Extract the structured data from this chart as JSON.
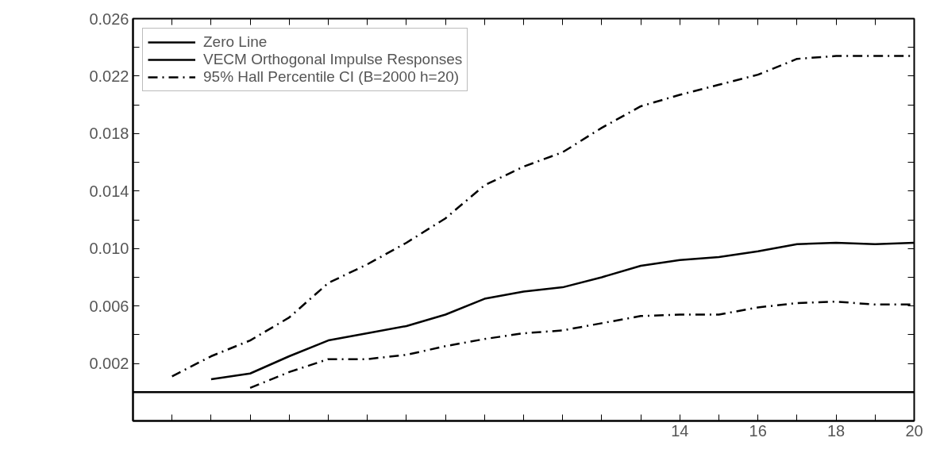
{
  "chart_data": {
    "type": "line",
    "x": [
      0,
      1,
      2,
      3,
      4,
      5,
      6,
      7,
      8,
      9,
      10,
      11,
      12,
      13,
      14,
      15,
      16,
      17,
      18,
      19,
      20
    ],
    "xlim": [
      0,
      20
    ],
    "ylim": [
      -0.002,
      0.026
    ],
    "xticks": [
      {
        "value": 0,
        "label": null
      },
      {
        "value": 1,
        "label": null
      },
      {
        "value": 2,
        "label": null
      },
      {
        "value": 3,
        "label": null
      },
      {
        "value": 4,
        "label": null
      },
      {
        "value": 5,
        "label": null
      },
      {
        "value": 6,
        "label": null
      },
      {
        "value": 7,
        "label": null
      },
      {
        "value": 8,
        "label": null
      },
      {
        "value": 9,
        "label": null
      },
      {
        "value": 10,
        "label": null
      },
      {
        "value": 11,
        "label": null
      },
      {
        "value": 12,
        "label": null
      },
      {
        "value": 13,
        "label": null
      },
      14,
      {
        "value": 15,
        "label": null
      },
      16,
      {
        "value": 17,
        "label": null
      },
      18,
      {
        "value": 19,
        "label": null
      },
      20
    ],
    "yticks": [
      {
        "value": 0.002,
        "label": "0.002"
      },
      {
        "value": 0.004,
        "label": null
      },
      {
        "value": 0.006,
        "label": "0.006"
      },
      {
        "value": 0.008,
        "label": null
      },
      {
        "value": 0.01,
        "label": "0.010"
      },
      {
        "value": 0.012,
        "label": null
      },
      {
        "value": 0.014,
        "label": "0.014"
      },
      {
        "value": 0.016,
        "label": null
      },
      {
        "value": 0.018,
        "label": "0.018"
      },
      {
        "value": 0.02,
        "label": null
      },
      {
        "value": 0.022,
        "label": "0.022"
      },
      {
        "value": 0.024,
        "label": null
      },
      {
        "value": 0.026,
        "label": "0.026"
      }
    ],
    "series": [
      {
        "name": "Zero Line",
        "color": "#000000",
        "line_style": "solid",
        "values": [
          0,
          0,
          0,
          0,
          0,
          0,
          0,
          0,
          0,
          0,
          0,
          0,
          0,
          0,
          0,
          0,
          0,
          0,
          0,
          0,
          0
        ]
      },
      {
        "name": "VECM Orthogonal Impulse Responses",
        "color": "#000000",
        "line_style": "solid",
        "values": [
          null,
          null,
          0.0009,
          0.0013,
          0.0025,
          0.0036,
          0.0041,
          0.0046,
          0.0054,
          0.0065,
          0.007,
          0.0073,
          0.008,
          0.0088,
          0.0092,
          0.0094,
          0.0098,
          0.0103,
          0.0104,
          0.0103,
          0.0104
        ]
      },
      {
        "name": "95% Hall Percentile CI (B=2000 h=20)",
        "color": "#000000",
        "line_style": "dashed",
        "values": [
          null,
          0.0011,
          0.0025,
          0.0036,
          0.0052,
          0.0076,
          0.0089,
          0.0104,
          0.0121,
          0.0144,
          0.0157,
          0.0167,
          0.0184,
          0.0199,
          0.0207,
          0.0214,
          0.0221,
          0.0232,
          0.0234,
          0.0234,
          0.0234
        ]
      },
      {
        "color": "#000000",
        "line_style": "dashed",
        "values": [
          null,
          null,
          null,
          0.0003,
          0.0014,
          0.0023,
          0.0023,
          0.0026,
          0.0032,
          0.0037,
          0.0041,
          0.0043,
          0.0048,
          0.0053,
          0.0054,
          0.0054,
          0.0059,
          0.0062,
          0.0063,
          0.0061,
          0.0061
        ]
      }
    ],
    "grid": false,
    "legend": "top left"
  }
}
